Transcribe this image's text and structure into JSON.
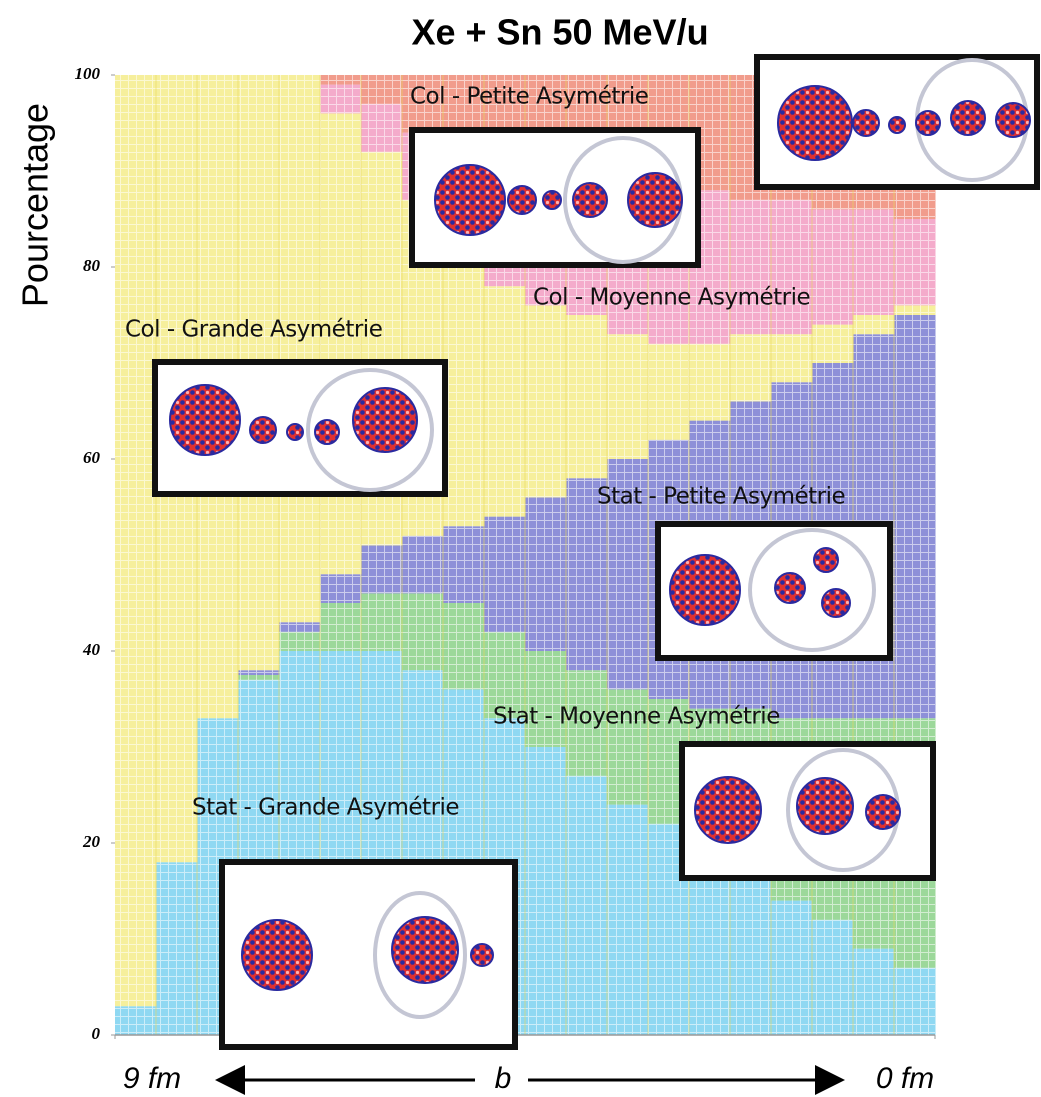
{
  "chart_data": {
    "type": "stacked-histogram",
    "title": "Xe + Sn 50 MeV/u",
    "y_label": "Pourcentage",
    "x_label": "b",
    "bins": [
      9,
      8.55,
      8.1,
      7.65,
      7.2,
      6.75,
      6.3,
      5.85,
      5.4,
      4.95,
      4.5,
      4.05,
      3.6,
      3.15,
      2.7,
      2.25,
      1.8,
      1.35,
      0.9,
      0.45,
      0
    ],
    "xlim": [
      9,
      0
    ],
    "xticks": [
      {
        "value": 9,
        "label": "9 fm"
      },
      {
        "value": 0,
        "label": "0 fm"
      }
    ],
    "ylim": [
      0,
      100
    ],
    "yticks": [
      0,
      20,
      40,
      60,
      80,
      100
    ],
    "series": [
      {
        "name": "Stat -  Grande Asymétrie",
        "color": "#8fd8f2",
        "values": [
          3,
          18,
          33,
          37,
          40,
          40,
          40,
          38,
          36,
          33,
          30,
          27,
          24,
          22,
          19,
          17,
          14,
          12,
          9,
          7
        ]
      },
      {
        "name": "Stat -  Moyenne Asymétrie",
        "color": "#9cd89a",
        "values": [
          0,
          0,
          0,
          0.5,
          2,
          5,
          6,
          8,
          9,
          9,
          10,
          11,
          12,
          13,
          15,
          17,
          19,
          21,
          24,
          26
        ]
      },
      {
        "name": "Stat -  Petite  Asymétrie",
        "color": "#8e90d8",
        "values": [
          0,
          0,
          0,
          0.5,
          1,
          3,
          5,
          6,
          8,
          12,
          16,
          20,
          24,
          27,
          30,
          32,
          35,
          37,
          40,
          42
        ]
      },
      {
        "name": "Col -  Grande Asymétrie",
        "color": "#f6ef9c",
        "values": [
          97,
          82,
          67,
          62,
          57,
          48,
          41,
          35,
          27,
          24,
          20,
          17,
          13,
          10,
          8,
          7,
          5,
          4,
          2,
          1
        ]
      },
      {
        "name": "Col -  Moyenne Asymétrie",
        "color": "#f4abcb",
        "values": [
          0,
          0,
          0,
          0,
          0,
          3,
          5,
          7,
          12,
          13,
          15,
          15,
          16,
          16,
          16,
          14,
          14,
          12,
          11,
          9
        ]
      },
      {
        "name": "Col -  Petite Asymétrie",
        "color": "#f19c8c",
        "values": [
          0,
          0,
          0,
          0,
          0,
          1,
          3,
          6,
          8,
          9,
          9,
          10,
          11,
          12,
          12,
          13,
          13,
          14,
          14,
          15
        ]
      }
    ]
  }
}
